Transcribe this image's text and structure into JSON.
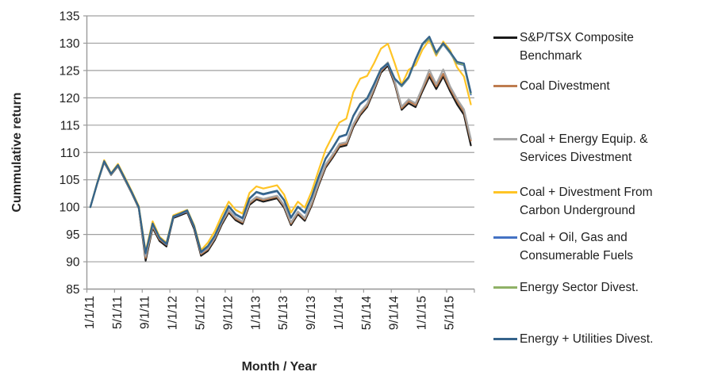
{
  "chart_data": {
    "type": "line",
    "title": "",
    "ylabel": "Cummulative return",
    "xlabel": "Month / Year",
    "ylim": [
      85,
      135
    ],
    "ytick_step": 5,
    "y_tick_labels": [
      "85",
      "90",
      "95",
      "100",
      "105",
      "110",
      "115",
      "120",
      "125",
      "130",
      "135"
    ],
    "x_tick_labels": [
      "1/1/11",
      "5/1/11",
      "9/1/11",
      "1/1/12",
      "5/1/12",
      "9/1/12",
      "1/1/13",
      "5/1/13",
      "9/1/13",
      "1/1/14",
      "5/1/14",
      "9/1/14",
      "1/1/15",
      "5/1/15"
    ],
    "grid": "horizontal",
    "legend_position": "right",
    "x_categories": [
      "1/1/11",
      "2/1/11",
      "3/1/11",
      "4/1/11",
      "5/1/11",
      "6/1/11",
      "7/1/11",
      "8/1/11",
      "9/1/11",
      "10/1/11",
      "11/1/11",
      "12/1/11",
      "1/1/12",
      "2/1/12",
      "3/1/12",
      "4/1/12",
      "5/1/12",
      "6/1/12",
      "7/1/12",
      "8/1/12",
      "9/1/12",
      "10/1/12",
      "11/1/12",
      "12/1/12",
      "1/1/13",
      "2/1/13",
      "3/1/13",
      "4/1/13",
      "5/1/13",
      "6/1/13",
      "7/1/13",
      "8/1/13",
      "9/1/13",
      "10/1/13",
      "11/1/13",
      "12/1/13",
      "1/1/14",
      "2/1/14",
      "3/1/14",
      "4/1/14",
      "5/1/14",
      "6/1/14",
      "7/1/14",
      "8/1/14",
      "9/1/14",
      "10/1/14",
      "11/1/14",
      "12/1/14",
      "1/1/15",
      "2/1/15",
      "3/1/15",
      "4/1/15",
      "5/1/15",
      "6/1/15",
      "7/1/15",
      "8/1/15"
    ],
    "series": [
      {
        "name": "S&P/TSX Composite Benchmark",
        "color": "#1a1a1a",
        "values": [
          100.0,
          104.3,
          108.2,
          105.9,
          107.5,
          105.0,
          102.5,
          99.8,
          90.2,
          96.2,
          93.8,
          92.8,
          98.0,
          98.5,
          99.0,
          96.0,
          91.1,
          92.0,
          94.0,
          96.8,
          99.0,
          97.6,
          96.9,
          100.4,
          101.4,
          101.0,
          101.3,
          101.6,
          99.9,
          96.7,
          98.7,
          97.5,
          100.3,
          104.0,
          107.2,
          109.0,
          111.0,
          111.3,
          114.6,
          116.8,
          118.3,
          121.3,
          124.6,
          125.9,
          122.5,
          117.8,
          119.0,
          118.3,
          121.2,
          123.9,
          121.6,
          123.9,
          121.2,
          118.8,
          116.9,
          111.3
        ]
      },
      {
        "name": "Coal Divestment",
        "color": "#BE7C4F",
        "values": [
          100.0,
          104.3,
          108.3,
          106.0,
          107.6,
          105.1,
          102.6,
          99.9,
          90.7,
          96.5,
          94.1,
          93.1,
          98.2,
          98.7,
          99.2,
          96.3,
          91.4,
          92.3,
          94.3,
          97.1,
          99.3,
          97.9,
          97.2,
          100.7,
          101.7,
          101.3,
          101.6,
          101.9,
          100.2,
          97.0,
          99.0,
          97.8,
          100.6,
          104.3,
          107.5,
          109.3,
          111.3,
          111.6,
          114.9,
          117.1,
          118.6,
          121.6,
          124.9,
          126.2,
          122.8,
          118.1,
          119.4,
          118.7,
          121.6,
          124.4,
          122.1,
          124.4,
          121.7,
          119.4,
          117.5,
          112.2
        ]
      },
      {
        "name": "Coal + Energy Equip. & Services Divestment",
        "color": "#A6A6A6",
        "values": [
          100.0,
          104.3,
          108.3,
          106.0,
          107.6,
          105.1,
          102.6,
          99.9,
          91.0,
          96.7,
          94.3,
          93.3,
          98.4,
          98.9,
          99.4,
          96.5,
          91.6,
          92.5,
          94.5,
          97.3,
          99.5,
          98.1,
          97.4,
          100.9,
          101.9,
          101.5,
          101.8,
          102.1,
          100.4,
          97.2,
          99.2,
          98.0,
          100.9,
          104.6,
          107.8,
          109.6,
          111.6,
          111.9,
          115.2,
          117.4,
          118.9,
          121.9,
          125.2,
          126.5,
          123.1,
          118.4,
          119.7,
          119.0,
          121.9,
          125.1,
          122.5,
          125.2,
          122.1,
          119.8,
          117.9,
          112.5
        ]
      },
      {
        "name": "Coal + Divestment From Carbon Underground",
        "color": "#FFC425",
        "values": [
          100.0,
          104.5,
          108.6,
          106.2,
          107.9,
          105.4,
          102.9,
          100.2,
          91.9,
          97.4,
          94.6,
          93.5,
          98.5,
          99.0,
          99.5,
          96.7,
          92.1,
          93.5,
          95.6,
          98.5,
          101.0,
          99.5,
          98.8,
          102.6,
          103.8,
          103.4,
          103.7,
          104.0,
          102.3,
          99.0,
          101.0,
          99.9,
          102.9,
          106.8,
          110.5,
          113.0,
          115.5,
          116.2,
          121.0,
          123.5,
          124.0,
          126.3,
          129.0,
          129.9,
          126.3,
          122.4,
          125.1,
          126.0,
          128.8,
          130.6,
          127.7,
          130.3,
          128.7,
          125.6,
          123.9,
          118.8
        ]
      },
      {
        "name": "Coal + Oil, Gas and Consumerable Fuels",
        "color": "#4472C4",
        "values": [
          100.0,
          104.4,
          108.4,
          106.1,
          107.7,
          105.2,
          102.7,
          100.0,
          91.5,
          96.9,
          94.3,
          93.2,
          98.2,
          98.7,
          99.3,
          96.4,
          91.7,
          92.8,
          94.7,
          97.5,
          100.1,
          98.6,
          97.9,
          101.5,
          102.7,
          102.3,
          102.6,
          102.9,
          101.2,
          98.0,
          100.0,
          98.9,
          101.8,
          105.5,
          108.8,
          110.7,
          112.8,
          113.2,
          116.6,
          118.8,
          119.8,
          122.4,
          125.2,
          126.2,
          123.4,
          122.1,
          123.6,
          126.9,
          129.7,
          130.9,
          128.0,
          129.8,
          128.2,
          126.3,
          126.0,
          120.6
        ]
      },
      {
        "name": "Energy Sector Divest.",
        "color": "#8FB166",
        "values": [
          100.0,
          104.4,
          108.4,
          106.1,
          107.7,
          105.2,
          102.7,
          100.0,
          91.6,
          97.0,
          94.4,
          93.3,
          98.3,
          98.8,
          99.4,
          96.5,
          91.8,
          92.9,
          94.8,
          97.6,
          100.2,
          98.7,
          98.0,
          101.6,
          102.8,
          102.4,
          102.7,
          103.0,
          101.3,
          98.1,
          100.1,
          99.0,
          101.9,
          105.6,
          108.9,
          110.8,
          112.9,
          113.3,
          116.7,
          118.9,
          119.9,
          122.5,
          125.3,
          126.3,
          123.5,
          122.2,
          123.7,
          127.0,
          129.8,
          131.0,
          128.1,
          129.9,
          128.3,
          126.4,
          126.1,
          120.8
        ]
      },
      {
        "name": "Energy + Utilities Divest.",
        "color": "#35638B",
        "values": [
          100.0,
          104.4,
          108.4,
          106.1,
          107.7,
          105.2,
          102.7,
          100.0,
          91.6,
          97.0,
          94.4,
          93.3,
          98.3,
          98.8,
          99.4,
          96.5,
          91.8,
          92.9,
          94.8,
          97.6,
          100.2,
          98.7,
          98.0,
          101.6,
          102.8,
          102.4,
          102.7,
          103.0,
          101.3,
          98.1,
          100.1,
          99.0,
          101.9,
          105.6,
          108.9,
          110.8,
          112.9,
          113.3,
          116.7,
          118.9,
          119.9,
          122.5,
          125.3,
          126.3,
          123.5,
          122.3,
          123.8,
          127.1,
          129.9,
          131.2,
          128.3,
          130.0,
          128.4,
          126.6,
          126.3,
          121.0
        ]
      }
    ],
    "colors": {
      "gridline": "#A0A0A0",
      "axis": "#9B9B9B",
      "tick_text": "#1f1f1f"
    }
  }
}
